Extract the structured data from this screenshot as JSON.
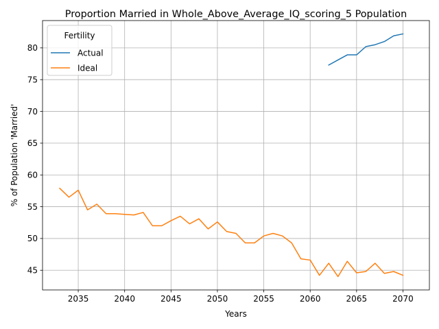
{
  "chart_data": {
    "type": "line",
    "title": "Proportion Married in Whole_Above_Average_IQ_scoring_5 Population",
    "xlabel": "Years",
    "ylabel": "% of Population 'Married'",
    "xlim": [
      2031.15,
      2072.85
    ],
    "ylim": [
      41.9,
      84.3
    ],
    "xticks": [
      2035,
      2040,
      2045,
      2050,
      2055,
      2060,
      2065,
      2070
    ],
    "yticks": [
      45,
      50,
      55,
      60,
      65,
      70,
      75,
      80
    ],
    "grid": true,
    "legend": {
      "title": "Fertility",
      "position": "top-left"
    },
    "series": [
      {
        "name": "Actual",
        "color": "#1f77b4",
        "x": [
          2062,
          2063,
          2064,
          2065,
          2066,
          2067,
          2068,
          2069,
          2070
        ],
        "y": [
          77.3,
          78.1,
          78.9,
          78.9,
          80.2,
          80.5,
          81.0,
          81.9,
          82.2
        ]
      },
      {
        "name": "Ideal",
        "color": "#ff7f0e",
        "x": [
          2033,
          2034,
          2035,
          2036,
          2037,
          2038,
          2039,
          2040,
          2041,
          2042,
          2043,
          2044,
          2045,
          2046,
          2047,
          2048,
          2049,
          2050,
          2051,
          2052,
          2053,
          2054,
          2055,
          2056,
          2057,
          2058,
          2059,
          2060,
          2061,
          2062,
          2063,
          2064,
          2065,
          2066,
          2067,
          2068,
          2069,
          2070
        ],
        "y": [
          57.9,
          56.5,
          57.6,
          54.5,
          55.4,
          53.9,
          53.9,
          53.8,
          53.7,
          54.1,
          52.0,
          52.0,
          52.8,
          53.5,
          52.3,
          53.1,
          51.5,
          52.6,
          51.1,
          50.8,
          49.3,
          49.3,
          50.4,
          50.8,
          50.4,
          49.3,
          46.8,
          46.6,
          44.2,
          46.1,
          44.0,
          46.4,
          44.6,
          44.8,
          46.1,
          44.5,
          44.8,
          44.2
        ]
      }
    ]
  }
}
